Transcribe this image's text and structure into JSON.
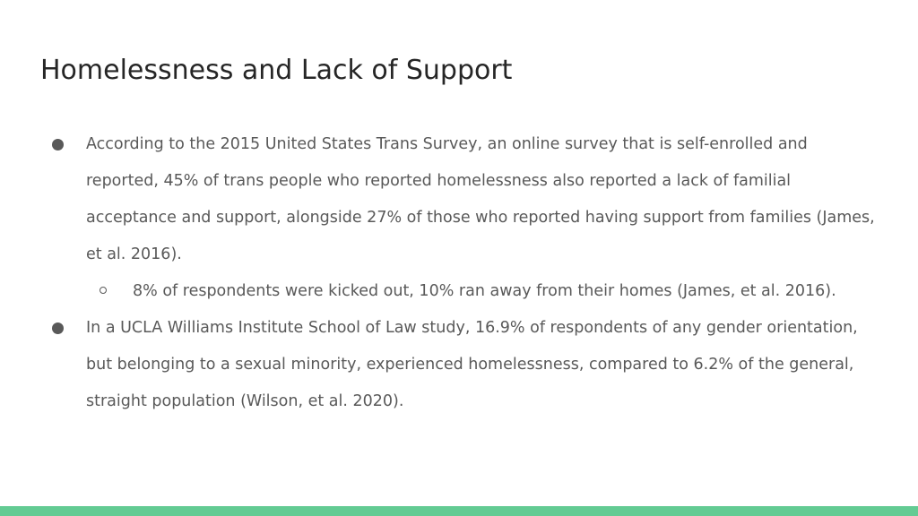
{
  "slide": {
    "title": "Homelessness and Lack of Support",
    "bullets": [
      {
        "text": "According to the 2015 United States Trans Survey, an online survey that is self-enrolled and reported, 45% of trans people who reported homelessness also reported a lack of familial acceptance and support, alongside 27% of those who reported having support from families (James, et al. 2016).",
        "sub_bullets": [
          "8% of respondents were kicked out, 10% ran away from their homes (James, et al. 2016)."
        ]
      },
      {
        "text": "In a UCLA Williams Institute School of Law study, 16.9% of respondents of any gender orientation, but belonging to a sexual minority, experienced homelessness, compared to 6.2% of the general, straight population (Wilson, et al. 2020)."
      }
    ]
  },
  "colors": {
    "title": "#262626",
    "body_text": "#595959",
    "accent_bar": "#63cb93",
    "background": "#ffffff"
  }
}
